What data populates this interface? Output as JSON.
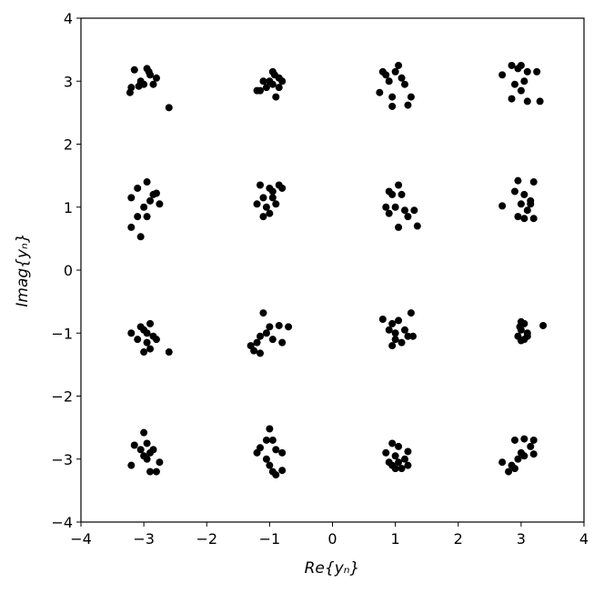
{
  "chart_data": {
    "type": "scatter",
    "xlabel": "Re{yₙ}",
    "ylabel": "Imag{yₙ}",
    "xlim": [
      -4,
      4
    ],
    "ylim": [
      -4,
      4
    ],
    "xticks": [
      {
        "value": -4,
        "label": "−4"
      },
      {
        "value": -3,
        "label": "−3"
      },
      {
        "value": -2,
        "label": "−2"
      },
      {
        "value": -1,
        "label": "−1"
      },
      0,
      1,
      2,
      3,
      4
    ],
    "yticks": [
      {
        "value": -4,
        "label": "−4"
      },
      {
        "value": -3,
        "label": "−3"
      },
      {
        "value": -2,
        "label": "−2"
      },
      {
        "value": -1,
        "label": "−1"
      },
      0,
      1,
      2,
      3,
      4
    ],
    "color": "#000000",
    "x": [
      -3.15,
      -3.2,
      -3.05,
      -2.95,
      -2.9,
      -2.8,
      -3.0,
      -2.85,
      -3.22,
      -2.6,
      -2.92,
      -3.08,
      -1.2,
      -1.05,
      -0.95,
      -0.85,
      -1.0,
      -0.9,
      -0.8,
      -1.1,
      -0.95,
      -1.15,
      -0.85,
      -0.92,
      0.8,
      0.75,
      0.95,
      1.05,
      1.1,
      0.9,
      1.25,
      0.95,
      1.2,
      0.85,
      1.0,
      1.15,
      2.7,
      2.85,
      2.95,
      3.05,
      3.1,
      3.25,
      2.9,
      3.0,
      2.85,
      3.1,
      3.3,
      3.0,
      -3.2,
      -3.1,
      -2.95,
      -2.9,
      -2.85,
      -3.0,
      -3.1,
      -2.95,
      -3.2,
      -3.05,
      -2.75,
      -2.8,
      -1.15,
      -1.0,
      -0.85,
      -1.1,
      -0.95,
      -1.2,
      -1.05,
      -0.9,
      -1.1,
      -1.0,
      -0.8,
      -0.95,
      0.9,
      1.05,
      1.1,
      1.0,
      0.85,
      1.15,
      1.2,
      1.3,
      1.35,
      1.05,
      0.95,
      0.9,
      2.95,
      2.9,
      3.05,
      3.15,
      3.2,
      2.7,
      3.0,
      3.1,
      2.95,
      3.05,
      3.2,
      3.15,
      -3.2,
      -3.05,
      -2.9,
      -3.0,
      -2.85,
      -3.1,
      -2.95,
      -3.0,
      -2.9,
      -2.6,
      -2.8,
      -2.95,
      -1.1,
      -1.0,
      -0.85,
      -0.7,
      -1.15,
      -1.05,
      -1.2,
      -1.25,
      -1.15,
      -0.95,
      -0.8,
      -1.3,
      0.8,
      0.95,
      1.05,
      1.25,
      0.9,
      1.0,
      1.15,
      1.2,
      1.0,
      1.1,
      0.95,
      1.28,
      3.0,
      3.05,
      3.35,
      3.0,
      3.1,
      2.95,
      3.05,
      3.0,
      3.1,
      2.98,
      -3.0,
      -3.15,
      -2.95,
      -3.05,
      -2.9,
      -2.85,
      -3.0,
      -2.95,
      -3.2,
      -2.75,
      -2.8,
      -2.9,
      -1.0,
      -1.05,
      -0.95,
      -1.15,
      -0.9,
      -0.8,
      -1.2,
      -1.05,
      -1.0,
      -0.95,
      -0.9,
      -0.8,
      0.95,
      1.05,
      0.85,
      1.0,
      1.2,
      0.9,
      1.05,
      1.1,
      1.2,
      1.0,
      0.95,
      1.15,
      2.9,
      3.05,
      3.2,
      3.15,
      3.2,
      3.0,
      2.95,
      2.7,
      2.85,
      2.8,
      2.9,
      3.05
    ],
    "values": [
      3.18,
      2.9,
      3.0,
      3.2,
      3.1,
      3.05,
      2.95,
      2.95,
      2.82,
      2.58,
      3.15,
      2.92,
      2.85,
      2.9,
      3.15,
      3.05,
      3.0,
      2.75,
      3.0,
      3.0,
      2.95,
      2.85,
      2.9,
      3.1,
      3.15,
      2.82,
      2.75,
      3.25,
      3.05,
      3.0,
      2.75,
      2.6,
      2.62,
      3.1,
      3.15,
      2.95,
      3.1,
      3.25,
      3.2,
      3.0,
      3.15,
      3.15,
      2.95,
      2.85,
      2.72,
      2.68,
      2.68,
      3.25,
      1.15,
      1.3,
      1.4,
      1.1,
      1.2,
      1.0,
      0.85,
      0.85,
      0.68,
      0.53,
      1.05,
      1.22,
      1.35,
      1.3,
      1.35,
      1.15,
      1.15,
      1.05,
      1.0,
      1.05,
      0.85,
      0.9,
      1.3,
      1.25,
      1.25,
      1.35,
      1.2,
      1.0,
      1.0,
      0.95,
      0.85,
      0.95,
      0.7,
      0.68,
      1.2,
      0.9,
      1.42,
      1.25,
      1.2,
      1.1,
      1.4,
      1.02,
      1.05,
      0.95,
      0.85,
      0.82,
      0.82,
      1.05,
      -1.0,
      -0.9,
      -0.85,
      -0.95,
      -1.05,
      -1.1,
      -1.15,
      -1.3,
      -1.25,
      -1.3,
      -1.1,
      -1.0,
      -0.68,
      -0.9,
      -0.88,
      -0.9,
      -1.05,
      -1.0,
      -1.15,
      -1.28,
      -1.32,
      -1.1,
      -1.15,
      -1.2,
      -0.78,
      -0.85,
      -0.8,
      -0.68,
      -0.95,
      -1.0,
      -0.95,
      -1.05,
      -1.1,
      -1.15,
      -1.2,
      -1.05,
      -0.82,
      -0.85,
      -0.88,
      -0.95,
      -1.0,
      -1.05,
      -1.1,
      -1.12,
      -1.05,
      -0.9,
      -2.58,
      -2.78,
      -2.75,
      -2.85,
      -2.9,
      -2.85,
      -2.95,
      -3.0,
      -3.1,
      -3.05,
      -3.2,
      -3.2,
      -2.52,
      -2.7,
      -2.7,
      -2.82,
      -2.85,
      -2.9,
      -2.9,
      -3.0,
      -3.1,
      -3.2,
      -3.25,
      -3.18,
      -2.75,
      -2.8,
      -2.9,
      -2.95,
      -2.88,
      -3.05,
      -3.05,
      -3.15,
      -3.1,
      -3.15,
      -3.1,
      -3.0,
      -2.7,
      -2.68,
      -2.7,
      -2.8,
      -2.92,
      -2.9,
      -3.0,
      -3.05,
      -3.1,
      -3.2,
      -3.15,
      -2.95
    ]
  }
}
